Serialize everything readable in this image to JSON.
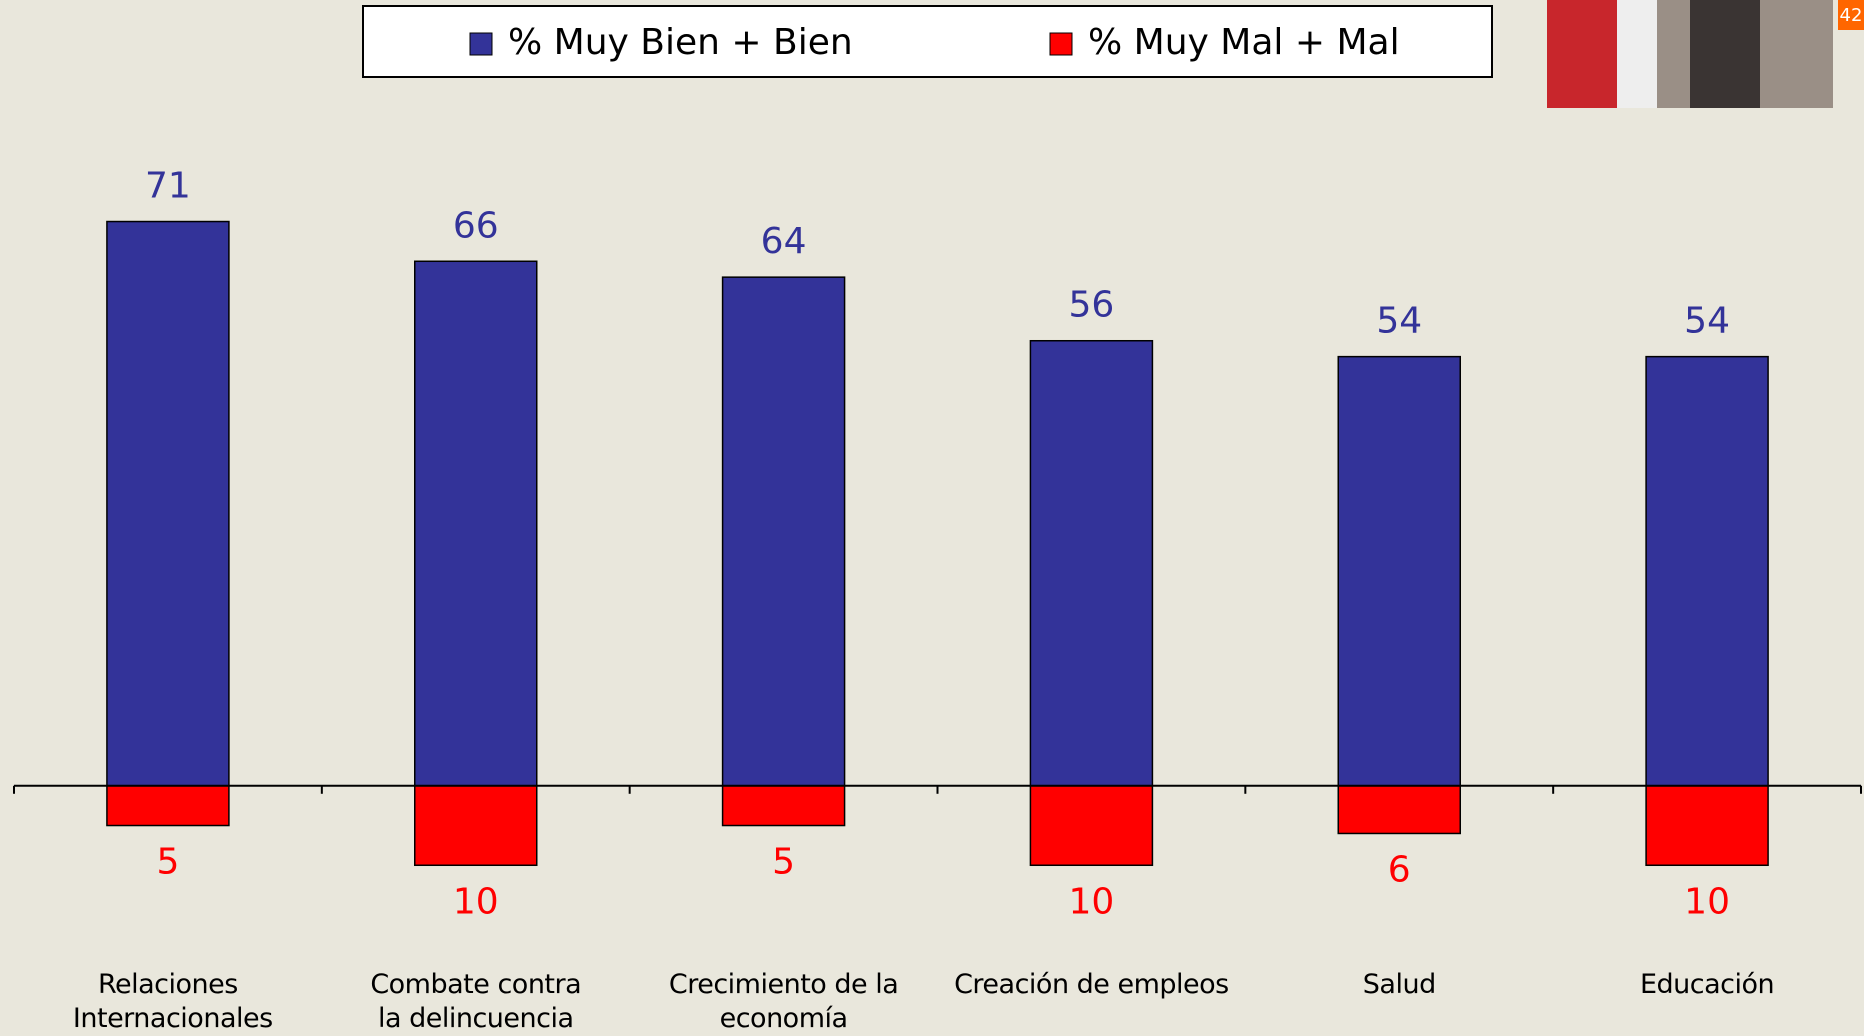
{
  "page_number": "42",
  "chart_data": {
    "type": "bar",
    "categories": [
      "Relaciones Internacionales",
      "Combate contra la delincuencia",
      "Crecimiento de la economía",
      "Creación de empleos",
      "Salud",
      "Educación"
    ],
    "series": [
      {
        "name": "% Muy Bien + Bien",
        "color": "#333399",
        "label_color": "#333399",
        "values": [
          71,
          66,
          64,
          56,
          54,
          54
        ]
      },
      {
        "name": "% Muy Mal + Mal",
        "color": "#ff0000",
        "label_color": "#ff0000",
        "values": [
          -5,
          -10,
          -5,
          -10,
          -6,
          -10
        ],
        "value_labels": [
          "5",
          "10",
          "5",
          "10",
          "6",
          "10"
        ]
      }
    ],
    "ylim": [
      -15,
      80
    ]
  }
}
